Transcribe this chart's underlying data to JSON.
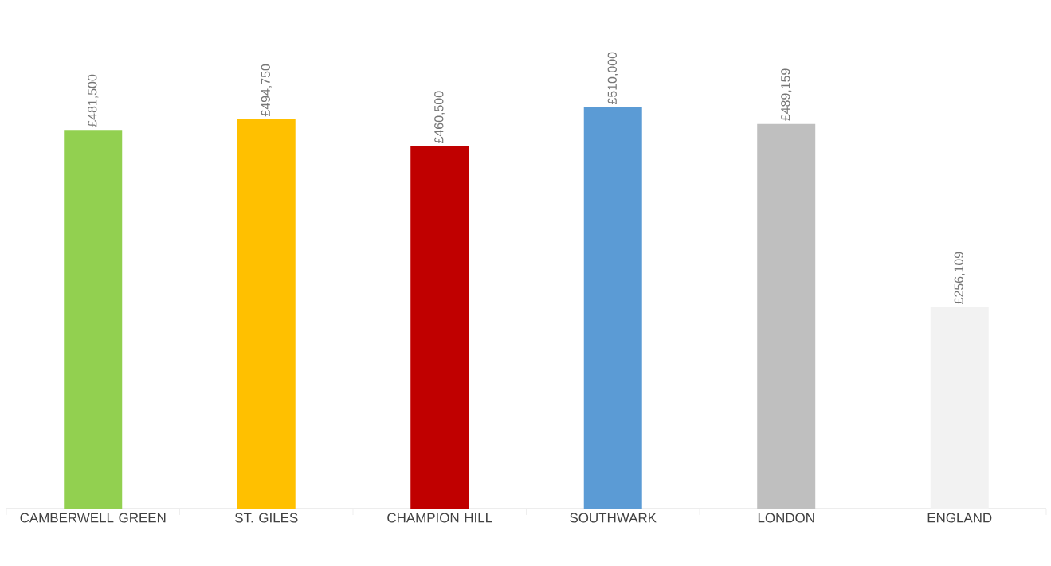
{
  "chart_data": {
    "type": "bar",
    "categories": [
      "CAMBERWELL GREEN",
      "ST. GILES",
      "CHAMPION HILL",
      "SOUTHWARK",
      "LONDON",
      "ENGLAND"
    ],
    "values": [
      481500,
      494750,
      460500,
      510000,
      489159,
      256109
    ],
    "colors": [
      "#92d050",
      "#ffc000",
      "#c00000",
      "#5b9bd5",
      "#bfbfbf",
      "#f2f2f2"
    ],
    "value_labels": [
      "£481,500",
      "£494,750",
      "£460,500",
      "£510,000",
      "£489,159",
      "£256,109"
    ]
  }
}
